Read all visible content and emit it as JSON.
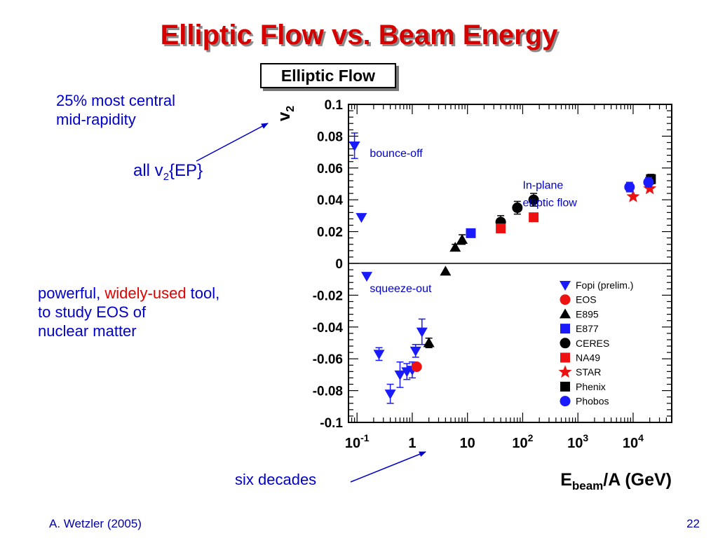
{
  "slide": {
    "title": "Elliptic Flow vs. Beam Energy",
    "box_label": "Elliptic Flow",
    "notes": {
      "central_line1": "25% most central",
      "central_line2": "mid-rapidity",
      "ep_prefix": "all v",
      "ep_sub": "2",
      "ep_suffix": "{EP}",
      "tool_a": "powerful, ",
      "tool_b": "widely-used",
      "tool_c": " tool,",
      "tool_line2": "to study EOS of",
      "tool_line3": "nuclear matter",
      "decades": "six decades"
    },
    "footer_author": "A. Wetzler (2005)",
    "page_number": "22",
    "colors": {
      "title": "#d40000",
      "note": "#0000cc",
      "emphasis": "#e00000"
    }
  },
  "chart_data": {
    "type": "scatter",
    "title": "Elliptic Flow",
    "xlabel": "E_beam/A (GeV)",
    "ylabel": "v2",
    "x_scale": "log",
    "xlim": [
      0.07,
      50000
    ],
    "ylim": [
      -0.1,
      0.1
    ],
    "x_ticks": [
      {
        "v": 0.1,
        "base": "10",
        "exp": "-1"
      },
      {
        "v": 1,
        "base": "1",
        "exp": ""
      },
      {
        "v": 10,
        "base": "10",
        "exp": ""
      },
      {
        "v": 100,
        "base": "10",
        "exp": "2"
      },
      {
        "v": 1000,
        "base": "10",
        "exp": "3"
      },
      {
        "v": 10000,
        "base": "10",
        "exp": "4"
      }
    ],
    "y_ticks": [
      {
        "v": 0.1,
        "label": "0.1"
      },
      {
        "v": 0.08,
        "label": "0.08"
      },
      {
        "v": 0.06,
        "label": "0.06"
      },
      {
        "v": 0.04,
        "label": "0.04"
      },
      {
        "v": 0.02,
        "label": "0.02"
      },
      {
        "v": 0,
        "label": "0"
      },
      {
        "v": -0.02,
        "label": "-0.02"
      },
      {
        "v": -0.04,
        "label": "-0.04"
      },
      {
        "v": -0.06,
        "label": "-0.06"
      },
      {
        "v": -0.08,
        "label": "-0.08"
      },
      {
        "v": -0.1,
        "label": "-0.1"
      }
    ],
    "grid": false,
    "legend_position": "bottom-right",
    "annotations": [
      {
        "text": "bounce-off",
        "x": 0.17,
        "y": 0.067
      },
      {
        "text": "In-plane",
        "x": 100,
        "y": 0.047
      },
      {
        "text": "elliptic flow",
        "x": 100,
        "y": 0.036
      },
      {
        "text": "squeeze-out",
        "x": 0.17,
        "y": -0.018
      }
    ],
    "series": [
      {
        "name": "Fopi (prelim.)",
        "marker": "triangle-down",
        "color": "#1a1aff",
        "points": [
          {
            "x": 0.09,
            "y": 0.074,
            "err": 0.008
          },
          {
            "x": 0.12,
            "y": 0.029,
            "err": 0
          },
          {
            "x": 0.15,
            "y": -0.008,
            "err": 0
          },
          {
            "x": 0.25,
            "y": -0.057,
            "err": 0.004
          },
          {
            "x": 0.4,
            "y": -0.082,
            "err": 0.006
          },
          {
            "x": 0.6,
            "y": -0.07,
            "err": 0.008
          },
          {
            "x": 0.8,
            "y": -0.068,
            "err": 0.005
          },
          {
            "x": 1.0,
            "y": -0.067,
            "err": 0.005
          },
          {
            "x": 1.15,
            "y": -0.055,
            "err": 0.004
          },
          {
            "x": 1.5,
            "y": -0.043,
            "err": 0.008
          }
        ]
      },
      {
        "name": "EOS",
        "marker": "circle",
        "color": "#ee1111",
        "points": [
          {
            "x": 1.2,
            "y": -0.065,
            "err": 0
          }
        ]
      },
      {
        "name": "E895",
        "marker": "triangle-up",
        "color": "#000000",
        "points": [
          {
            "x": 2,
            "y": -0.05,
            "err": 0.003
          },
          {
            "x": 4,
            "y": -0.005,
            "err": 0
          },
          {
            "x": 6,
            "y": 0.01,
            "err": 0.002
          },
          {
            "x": 8,
            "y": 0.015,
            "err": 0.003
          }
        ]
      },
      {
        "name": "E877",
        "marker": "square",
        "color": "#1a1aff",
        "points": [
          {
            "x": 11.5,
            "y": 0.019,
            "err": 0
          }
        ]
      },
      {
        "name": "CERES",
        "marker": "circle",
        "color": "#000000",
        "points": [
          {
            "x": 40,
            "y": 0.026,
            "err": 0.004
          },
          {
            "x": 80,
            "y": 0.035,
            "err": 0.004
          },
          {
            "x": 158,
            "y": 0.04,
            "err": 0.004
          }
        ]
      },
      {
        "name": "NA49",
        "marker": "square",
        "color": "#ee1111",
        "points": [
          {
            "x": 40,
            "y": 0.022,
            "err": 0
          },
          {
            "x": 158,
            "y": 0.029,
            "err": 0
          }
        ]
      },
      {
        "name": "STAR",
        "marker": "star",
        "color": "#ee1111",
        "points": [
          {
            "x": 10000,
            "y": 0.042,
            "err": 0
          },
          {
            "x": 20000,
            "y": 0.047,
            "err": 0
          }
        ]
      },
      {
        "name": "Phenix",
        "marker": "square",
        "color": "#000000",
        "points": [
          {
            "x": 21000,
            "y": 0.053,
            "err": 0.003
          }
        ]
      },
      {
        "name": "Phobos",
        "marker": "circle",
        "color": "#1a1aff",
        "points": [
          {
            "x": 8600,
            "y": 0.048,
            "err": 0.003
          },
          {
            "x": 19000,
            "y": 0.051,
            "err": 0.003
          }
        ]
      }
    ]
  }
}
